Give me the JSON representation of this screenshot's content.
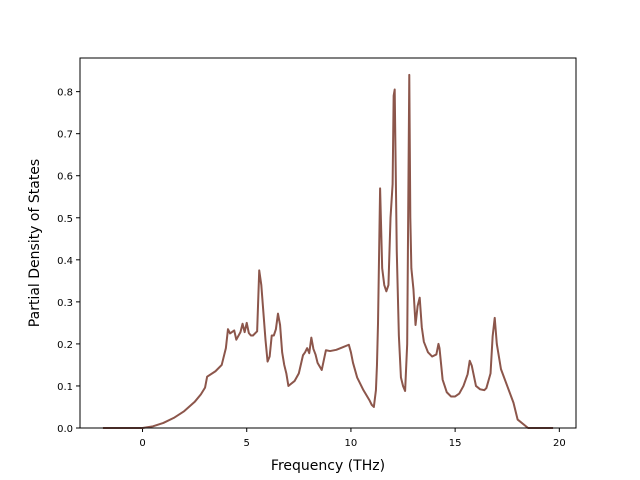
{
  "chart_data": {
    "type": "line",
    "title": "",
    "xlabel": "Frequency (THz)",
    "ylabel": "Partial Density of States",
    "xlim": [
      -3.0,
      20.8
    ],
    "ylim": [
      0.0,
      0.88
    ],
    "xticks": [
      0,
      5,
      10,
      15,
      20
    ],
    "yticks": [
      0.0,
      0.1,
      0.2,
      0.3,
      0.4,
      0.5,
      0.6,
      0.7,
      0.8
    ],
    "xtick_labels": [
      "0",
      "5",
      "10",
      "15",
      "20"
    ],
    "ytick_labels": [
      "0.0",
      "0.1",
      "0.2",
      "0.3",
      "0.4",
      "0.5",
      "0.6",
      "0.7",
      "0.8"
    ],
    "grid": false,
    "legend": "none",
    "series": [
      {
        "color": "#8c564b",
        "x": [
          -1.9,
          -1.0,
          0.0,
          0.5,
          1.0,
          1.5,
          2.0,
          2.5,
          2.8,
          3.0,
          3.1,
          3.5,
          3.8,
          4.0,
          4.1,
          4.2,
          4.4,
          4.5,
          4.7,
          4.8,
          4.9,
          5.0,
          5.1,
          5.2,
          5.3,
          5.5,
          5.6,
          5.7,
          5.8,
          5.9,
          6.0,
          6.1,
          6.2,
          6.3,
          6.4,
          6.5,
          6.6,
          6.7,
          6.8,
          6.9,
          7.0,
          7.1,
          7.3,
          7.5,
          7.7,
          7.8,
          7.9,
          8.0,
          8.1,
          8.2,
          8.3,
          8.4,
          8.6,
          8.8,
          9.0,
          9.3,
          9.6,
          9.9,
          10.0,
          10.1,
          10.3,
          10.6,
          10.9,
          11.0,
          11.1,
          11.2,
          11.25,
          11.3,
          11.4,
          11.5,
          11.6,
          11.7,
          11.8,
          11.9,
          12.0,
          12.05,
          12.1,
          12.2,
          12.3,
          12.4,
          12.5,
          12.6,
          12.7,
          12.8,
          12.85,
          12.9,
          13.0,
          13.1,
          13.2,
          13.3,
          13.4,
          13.5,
          13.7,
          13.9,
          14.1,
          14.2,
          14.25,
          14.4,
          14.6,
          14.8,
          15.0,
          15.2,
          15.4,
          15.6,
          15.7,
          15.8,
          16.0,
          16.2,
          16.4,
          16.5,
          16.7,
          16.8,
          16.9,
          17.0,
          17.2,
          17.5,
          17.8,
          18.0,
          18.5,
          19.0,
          19.5,
          19.7
        ],
        "values": [
          0.0,
          0.0,
          0.0,
          0.004,
          0.012,
          0.024,
          0.04,
          0.062,
          0.08,
          0.096,
          0.122,
          0.135,
          0.15,
          0.19,
          0.235,
          0.225,
          0.232,
          0.21,
          0.228,
          0.248,
          0.228,
          0.25,
          0.226,
          0.22,
          0.22,
          0.23,
          0.375,
          0.34,
          0.275,
          0.21,
          0.158,
          0.17,
          0.22,
          0.22,
          0.235,
          0.272,
          0.245,
          0.18,
          0.15,
          0.13,
          0.1,
          0.104,
          0.112,
          0.13,
          0.173,
          0.18,
          0.19,
          0.178,
          0.215,
          0.188,
          0.175,
          0.155,
          0.138,
          0.185,
          0.183,
          0.186,
          0.192,
          0.198,
          0.18,
          0.155,
          0.12,
          0.09,
          0.065,
          0.055,
          0.05,
          0.09,
          0.15,
          0.25,
          0.57,
          0.38,
          0.34,
          0.325,
          0.34,
          0.5,
          0.58,
          0.79,
          0.805,
          0.42,
          0.22,
          0.12,
          0.1,
          0.088,
          0.2,
          0.84,
          0.5,
          0.38,
          0.33,
          0.245,
          0.29,
          0.31,
          0.24,
          0.205,
          0.18,
          0.17,
          0.175,
          0.2,
          0.19,
          0.115,
          0.085,
          0.075,
          0.075,
          0.082,
          0.1,
          0.128,
          0.16,
          0.148,
          0.1,
          0.092,
          0.09,
          0.095,
          0.13,
          0.218,
          0.262,
          0.2,
          0.14,
          0.1,
          0.06,
          0.02,
          0.0,
          0.0,
          0.0,
          0.0
        ]
      }
    ]
  }
}
